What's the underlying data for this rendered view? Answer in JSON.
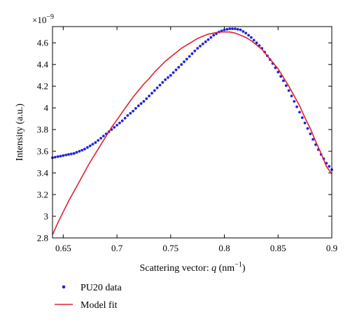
{
  "chart_data": {
    "type": "line",
    "title": "",
    "exponent_label_base": "×10",
    "exponent_label_power": "−9",
    "xlabel_prefix": "Scattering vector: ",
    "xlabel_var": "q",
    "xlabel_unit_open": " (nm",
    "xlabel_unit_power": "−1",
    "xlabel_unit_close": ")",
    "ylabel": "Intensity (a.u.)",
    "xlim": [
      0.64,
      0.9
    ],
    "ylim": [
      2.8,
      4.75
    ],
    "xticks": [
      0.65,
      0.7,
      0.75,
      0.8,
      0.85,
      0.9
    ],
    "xtick_labels": [
      "0.65",
      "0.7",
      "0.75",
      "0.8",
      "0.85",
      "0.9"
    ],
    "yticks": [
      2.8,
      3.0,
      3.2,
      3.4,
      3.6,
      3.8,
      4.0,
      4.2,
      4.4,
      4.6
    ],
    "ytick_labels": [
      "2.8",
      "3",
      "3.2",
      "3.4",
      "3.6",
      "3.8",
      "4",
      "4.2",
      "4.4",
      "4.6"
    ],
    "grid": false,
    "legend_position": "bottom-left, below plot",
    "series": [
      {
        "name": "PU20 data",
        "style": "points",
        "color": "#2020e0",
        "x": [
          0.64,
          0.645,
          0.65,
          0.655,
          0.66,
          0.665,
          0.67,
          0.675,
          0.68,
          0.685,
          0.69,
          0.695,
          0.7,
          0.705,
          0.71,
          0.715,
          0.72,
          0.725,
          0.73,
          0.735,
          0.74,
          0.745,
          0.75,
          0.755,
          0.76,
          0.765,
          0.77,
          0.775,
          0.78,
          0.785,
          0.79,
          0.795,
          0.8,
          0.805,
          0.81,
          0.815,
          0.82,
          0.825,
          0.83,
          0.835,
          0.84,
          0.845,
          0.85,
          0.855,
          0.86,
          0.865,
          0.87,
          0.875,
          0.88,
          0.885,
          0.89,
          0.895,
          0.9
        ],
        "values": [
          3.54,
          3.55,
          3.56,
          3.57,
          3.58,
          3.6,
          3.62,
          3.65,
          3.68,
          3.72,
          3.76,
          3.8,
          3.84,
          3.88,
          3.93,
          3.97,
          4.02,
          4.06,
          4.11,
          4.16,
          4.21,
          4.26,
          4.3,
          4.35,
          4.4,
          4.45,
          4.5,
          4.55,
          4.59,
          4.63,
          4.67,
          4.7,
          4.72,
          4.73,
          4.73,
          4.72,
          4.69,
          4.65,
          4.6,
          4.55,
          4.48,
          4.41,
          4.33,
          4.25,
          4.16,
          4.06,
          3.96,
          3.86,
          3.76,
          3.66,
          3.57,
          3.49,
          3.43
        ]
      },
      {
        "name": "Model fit",
        "style": "line",
        "color": "#e02030",
        "x": [
          0.64,
          0.645,
          0.65,
          0.655,
          0.66,
          0.665,
          0.67,
          0.675,
          0.68,
          0.685,
          0.69,
          0.695,
          0.7,
          0.705,
          0.71,
          0.715,
          0.72,
          0.725,
          0.73,
          0.735,
          0.74,
          0.745,
          0.75,
          0.755,
          0.76,
          0.765,
          0.77,
          0.775,
          0.78,
          0.785,
          0.79,
          0.795,
          0.8,
          0.805,
          0.81,
          0.815,
          0.82,
          0.825,
          0.83,
          0.835,
          0.84,
          0.845,
          0.85,
          0.855,
          0.86,
          0.865,
          0.87,
          0.875,
          0.88,
          0.885,
          0.89,
          0.895,
          0.9
        ],
        "values": [
          2.83,
          2.94,
          3.04,
          3.14,
          3.23,
          3.32,
          3.41,
          3.5,
          3.58,
          3.66,
          3.74,
          3.82,
          3.89,
          3.96,
          4.03,
          4.1,
          4.16,
          4.22,
          4.27,
          4.33,
          4.38,
          4.43,
          4.47,
          4.51,
          4.55,
          4.58,
          4.61,
          4.64,
          4.66,
          4.68,
          4.69,
          4.7,
          4.7,
          4.7,
          4.69,
          4.67,
          4.65,
          4.62,
          4.58,
          4.54,
          4.48,
          4.42,
          4.36,
          4.28,
          4.2,
          4.11,
          4.02,
          3.91,
          3.81,
          3.69,
          3.58,
          3.46,
          3.39
        ]
      }
    ]
  }
}
